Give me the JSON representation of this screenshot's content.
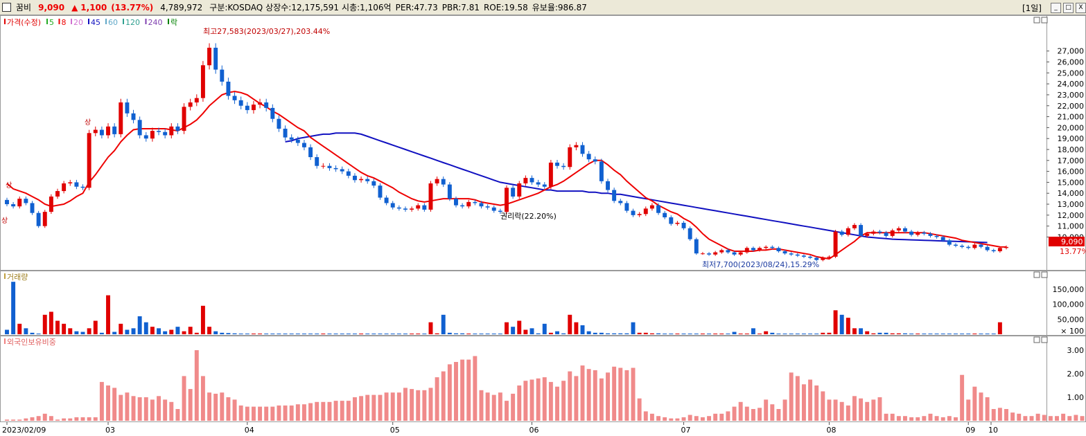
{
  "header": {
    "name": "꿈비",
    "price": "9,090",
    "arrow": "▲",
    "change": "1,100",
    "change_pct": "(13.77%)",
    "volume": "4,789,972",
    "market": "구분:KOSDAQ",
    "shares": "상장수:12,175,591",
    "mcap": "시총:1,106억",
    "per": "PER:47.73",
    "pbr": "PBR:7.81",
    "roe": "ROE:19.58",
    "float": "유보율:986.87",
    "period": "[1일]",
    "btn_min": "_",
    "btn_max": "□",
    "btn_close": "X"
  },
  "price_panel": {
    "legend": [
      {
        "label": "가격(수정)",
        "color": "#e00000"
      },
      {
        "label": "5",
        "color": "#22aa22"
      },
      {
        "label": "8",
        "color": "#ee0000"
      },
      {
        "label": "20",
        "color": "#d070d0"
      },
      {
        "label": "45",
        "color": "#1010c0"
      },
      {
        "label": "60",
        "color": "#60a8c8"
      },
      {
        "label": "120",
        "color": "#30a090"
      },
      {
        "label": "240",
        "color": "#8040b0"
      },
      {
        "label": "락",
        "color": "#008000"
      }
    ],
    "high_note": "최고27,583(2023/03/27),203.44%",
    "low_note": "최저7,700(2023/08/24),15.29%",
    "rights_note": "권리락(22.20%)",
    "limit_up_1": "상",
    "limit_up_2": "상",
    "limit_up_3": "상",
    "last_price_tag": "9,090",
    "last_pct_tag": "13.77%",
    "y_ticks": [
      "27,000",
      "26,000",
      "25,000",
      "24,000",
      "23,000",
      "22,000",
      "21,000",
      "20,000",
      "19,000",
      "18,000",
      "17,000",
      "16,000",
      "15,000",
      "14,000",
      "13,000",
      "12,000",
      "11,000",
      "10,000"
    ]
  },
  "volume_panel": {
    "legend": "거래량",
    "y_ticks": [
      "150,000",
      "100,000",
      "50,000",
      "× 100"
    ]
  },
  "foreign_panel": {
    "legend": "외국인보유비중",
    "y_ticks": [
      "3.00",
      "2.00",
      "1.00"
    ]
  },
  "x_labels": [
    "2023/02/09",
    "03",
    "04",
    "05",
    "06",
    "07",
    "08",
    "09",
    "10"
  ],
  "chart_data": {
    "type": "candlestick",
    "y_range": [
      7500,
      28500
    ],
    "closes": [
      13000,
      12800,
      13500,
      13100,
      12200,
      11000,
      12300,
      13700,
      14200,
      14900,
      15000,
      14600,
      14500,
      19500,
      19800,
      19300,
      20100,
      19400,
      22300,
      21300,
      20700,
      19300,
      19000,
      19700,
      19600,
      19300,
      20100,
      19700,
      21900,
      22300,
      22700,
      25700,
      27300,
      25300,
      24200,
      22900,
      22500,
      22000,
      21600,
      22100,
      22300,
      21800,
      20800,
      19900,
      19100,
      18900,
      18600,
      18200,
      17300,
      16500,
      16500,
      16300,
      16200,
      16000,
      15600,
      15200,
      15300,
      15100,
      14700,
      13600,
      13100,
      12700,
      12600,
      12500,
      12600,
      12900,
      12500,
      14900,
      15300,
      14800,
      13500,
      12900,
      12800,
      13200,
      13100,
      12800,
      12700,
      12400,
      12300,
      14500,
      13700,
      14900,
      15400,
      15000,
      14800,
      14600,
      16800,
      16500,
      16400,
      18200,
      18400,
      17600,
      17100,
      16900,
      15100,
      14300,
      13300,
      13100,
      12400,
      12000,
      12100,
      12600,
      12900,
      12200,
      11800,
      11200,
      11300,
      10800,
      9800,
      8500,
      8500,
      8400,
      8600,
      8800,
      8600,
      8400,
      8600,
      9000,
      8800,
      9000,
      9100,
      9000,
      8700,
      8500,
      8400,
      8300,
      8200,
      8100,
      7900,
      8100,
      8200,
      10500,
      10200,
      10800,
      11100,
      10100,
      10300,
      10500,
      10400,
      10100,
      10600,
      10800,
      10500,
      10200,
      10400,
      10300,
      10100,
      10000,
      9700,
      9300,
      9200,
      9100,
      9000,
      9300,
      9100,
      8800,
      8700,
      9000,
      9090
    ],
    "ma8": [
      14900,
      14400,
      14200,
      14000,
      13700,
      13400,
      13000,
      12800,
      12900,
      13000,
      13300,
      13700,
      14000,
      15000,
      15700,
      16500,
      17300,
      17900,
      18700,
      19300,
      19800,
      19900,
      19900,
      19900,
      19900,
      19900,
      19800,
      19700,
      20000,
      20300,
      20700,
      21300,
      22000,
      22500,
      23000,
      23200,
      23300,
      23200,
      23000,
      22600,
      22200,
      21900,
      21500,
      21200,
      20800,
      20400,
      20000,
      19700,
      19100,
      18700,
      18300,
      17900,
      17500,
      17100,
      16700,
      16300,
      15900,
      15600,
      15400,
      15100,
      14800,
      14500,
      14100,
      13800,
      13500,
      13300,
      13200,
      13300,
      13400,
      13500,
      13500,
      13500,
      13500,
      13500,
      13400,
      13200,
      13100,
      13000,
      12900,
      13000,
      13200,
      13400,
      13600,
      13800,
      14000,
      14300,
      14600,
      14800,
      15100,
      15500,
      15900,
      16300,
      16700,
      17000,
      17000,
      16600,
      16100,
      15700,
      15100,
      14600,
      14100,
      13600,
      13300,
      12900,
      12600,
      12300,
      12100,
      11700,
      11400,
      10900,
      10300,
      9800,
      9500,
      9200,
      8900,
      8700,
      8700,
      8700,
      8700,
      8800,
      8800,
      8900,
      8900,
      8800,
      8700,
      8600,
      8500,
      8400,
      8200,
      8100,
      8000,
      8400,
      8800,
      9200,
      9600,
      10100,
      10400,
      10400,
      10400,
      10400,
      10400,
      10400,
      10400,
      10400,
      10400,
      10400,
      10300,
      10200,
      10100,
      10000,
      9900,
      9700,
      9600,
      9500,
      9400,
      9300,
      9200,
      9100,
      9090
    ],
    "ma45": [
      null,
      null,
      null,
      null,
      null,
      null,
      null,
      null,
      null,
      null,
      null,
      null,
      null,
      null,
      null,
      null,
      null,
      null,
      null,
      null,
      null,
      null,
      null,
      null,
      null,
      null,
      null,
      null,
      null,
      null,
      null,
      null,
      null,
      null,
      null,
      null,
      null,
      null,
      null,
      null,
      null,
      null,
      null,
      null,
      18700,
      18800,
      19000,
      19100,
      19200,
      19300,
      19400,
      19400,
      19500,
      19500,
      19500,
      19500,
      19400,
      19200,
      19000,
      18800,
      18600,
      18400,
      18200,
      18000,
      17800,
      17600,
      17400,
      17200,
      17000,
      16800,
      16600,
      16400,
      16200,
      16000,
      15800,
      15600,
      15400,
      15200,
      15000,
      14900,
      14800,
      14700,
      14600,
      14500,
      14400,
      14300,
      14300,
      14200,
      14200,
      14200,
      14200,
      14200,
      14100,
      14100,
      14000,
      14000,
      13900,
      13900,
      13800,
      13700,
      13600,
      13500,
      13400,
      13300,
      13200,
      13100,
      13000,
      12900,
      12800,
      12700,
      12600,
      12500,
      12400,
      12300,
      12200,
      12100,
      12000,
      11900,
      11800,
      11700,
      11600,
      11500,
      11400,
      11300,
      11200,
      11100,
      11000,
      10900,
      10800,
      10700,
      10600,
      10500,
      10400,
      10300,
      10200,
      10100,
      10000,
      9950,
      9900,
      9850,
      9800,
      9780,
      9760,
      9740,
      9720,
      9700,
      9680,
      9660,
      9640,
      9620,
      9600,
      9580,
      9560,
      9540,
      9520,
      9500
    ],
    "volumes": [
      15000,
      175000,
      35000,
      20000,
      5000,
      2000,
      65000,
      75000,
      45000,
      35000,
      20000,
      10000,
      8000,
      20000,
      45000,
      5000,
      130000,
      8000,
      35000,
      15000,
      20000,
      60000,
      40000,
      25000,
      20000,
      10000,
      15000,
      25000,
      10000,
      25000,
      5000,
      95000,
      25000,
      10000,
      5000,
      4000,
      3000,
      2000,
      2000,
      1500,
      1500,
      1500,
      1000,
      1000,
      1000,
      1000,
      1000,
      1000,
      1000,
      1000,
      1000,
      1000,
      1000,
      1000,
      1000,
      1000,
      1000,
      1000,
      1000,
      1000,
      1000,
      1000,
      1000,
      1000,
      1000,
      1000,
      1000,
      40000,
      3000,
      65000,
      5000,
      3000,
      3000,
      2000,
      2000,
      2000,
      2000,
      2000,
      2000,
      40000,
      25000,
      45000,
      15000,
      20000,
      3000,
      35000,
      5000,
      10000,
      3000,
      65000,
      40000,
      30000,
      10000,
      5000,
      5000,
      3000,
      3000,
      3000,
      3000,
      40000,
      5000,
      5000,
      3000,
      3000,
      2000,
      2000,
      2000,
      1500,
      1500,
      1500,
      1500,
      1000,
      1000,
      1000,
      1000,
      8000,
      1000,
      1000,
      20000,
      1000,
      10000,
      5000,
      1000,
      1000,
      1000,
      1000,
      1000,
      1000,
      1000,
      5000,
      5000,
      80000,
      65000,
      55000,
      20000,
      20000,
      10000,
      3000,
      5000,
      5000,
      3000,
      3000,
      3000,
      2000,
      2000,
      2000,
      2000,
      1500,
      1500,
      1500,
      1000,
      1000,
      1000,
      1000,
      1000,
      1000,
      1000,
      40000
    ],
    "foreign": [
      0.05,
      0.05,
      0.05,
      0.1,
      0.15,
      0.2,
      0.3,
      0.2,
      0.05,
      0.1,
      0.1,
      0.15,
      0.15,
      0.15,
      0.15,
      1.65,
      1.5,
      1.4,
      1.1,
      1.2,
      1.05,
      1.0,
      1.0,
      0.9,
      1.05,
      0.9,
      0.8,
      0.5,
      1.9,
      1.35,
      3.0,
      1.9,
      1.2,
      1.15,
      1.2,
      1.0,
      0.9,
      0.65,
      0.6,
      0.6,
      0.6,
      0.6,
      0.6,
      0.65,
      0.65,
      0.65,
      0.7,
      0.7,
      0.75,
      0.8,
      0.8,
      0.8,
      0.85,
      0.85,
      0.85,
      1.0,
      1.05,
      1.1,
      1.1,
      1.1,
      1.2,
      1.2,
      1.2,
      1.4,
      1.35,
      1.3,
      1.3,
      1.4,
      1.85,
      2.1,
      2.4,
      2.5,
      2.6,
      2.6,
      2.75,
      1.3,
      1.2,
      1.1,
      1.2,
      0.85,
      1.15,
      1.5,
      1.7,
      1.75,
      1.8,
      1.85,
      1.65,
      1.45,
      1.7,
      2.1,
      1.9,
      2.35,
      2.2,
      2.15,
      1.8,
      2.05,
      2.3,
      2.25,
      2.15,
      2.25,
      0.95,
      0.4,
      0.3,
      0.2,
      0.15,
      0.1,
      0.1,
      0.15,
      0.25,
      0.2,
      0.15,
      0.2,
      0.3,
      0.3,
      0.4,
      0.6,
      0.8,
      0.6,
      0.5,
      0.55,
      0.9,
      0.7,
      0.5,
      0.9,
      2.05,
      1.9,
      1.55,
      1.75,
      1.5,
      1.25,
      0.9,
      0.9,
      0.8,
      0.65,
      1.05,
      0.95,
      0.8,
      0.9,
      1.0,
      0.3,
      0.3,
      0.2,
      0.2,
      0.15,
      0.15,
      0.2,
      0.3,
      0.2,
      0.15,
      0.2,
      0.15,
      1.95,
      0.9,
      1.45,
      1.2,
      1.0,
      0.5,
      0.55,
      0.5,
      0.35,
      0.3,
      0.2,
      0.2,
      0.3,
      0.25,
      0.2,
      0.2,
      0.3,
      0.2,
      0.25,
      0.2
    ]
  }
}
